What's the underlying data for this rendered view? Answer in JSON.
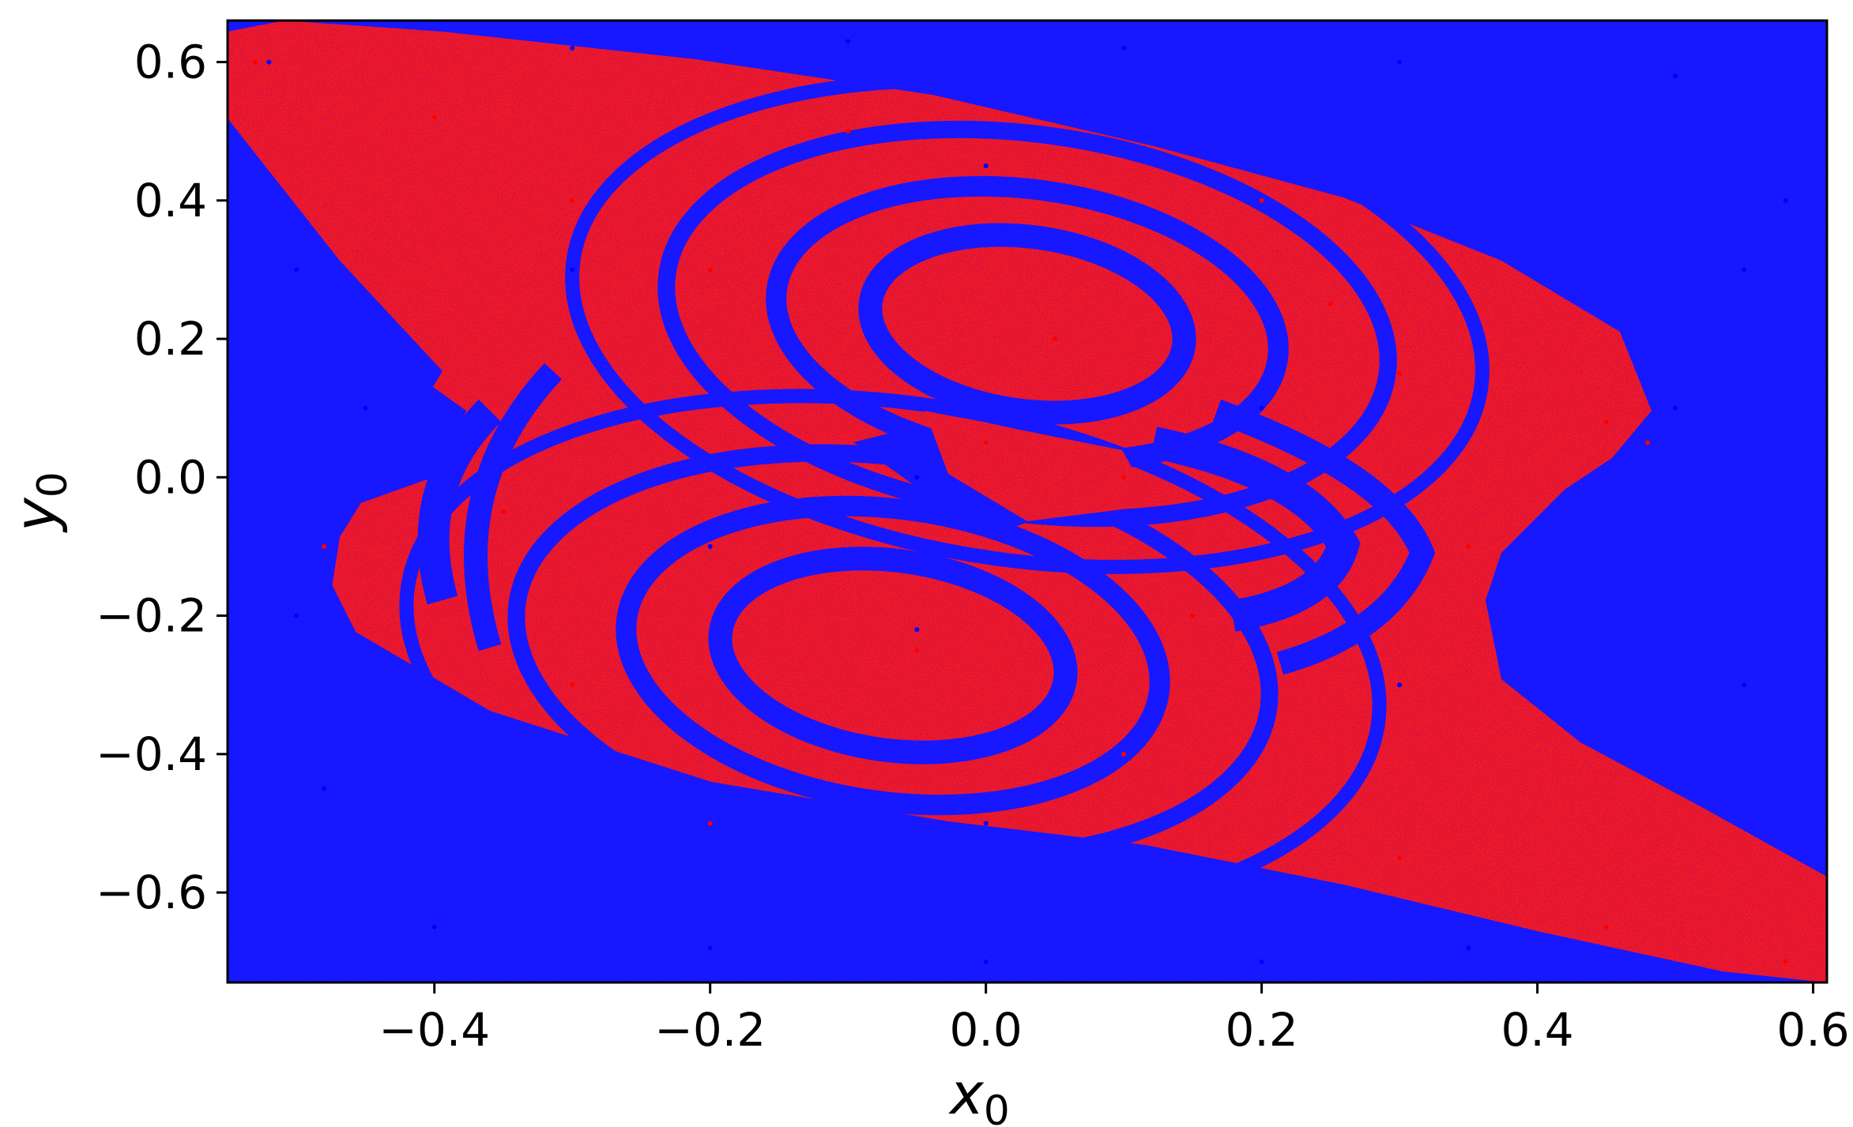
{
  "chart_data": {
    "type": "scatter",
    "title": "",
    "xlabel": "x",
    "xlabel_sub": "0",
    "ylabel": "y",
    "ylabel_sub": "0",
    "xlim": [
      -0.55,
      0.61
    ],
    "ylim": [
      -0.73,
      0.66
    ],
    "xticks": [
      -0.4,
      -0.2,
      0.0,
      0.2,
      0.4,
      0.6
    ],
    "xtick_labels": [
      "−0.4",
      "−0.2",
      "0.0",
      "0.2",
      "0.4",
      "0.6"
    ],
    "yticks": [
      -0.6,
      -0.4,
      -0.2,
      0.0,
      0.2,
      0.4,
      0.6
    ],
    "ytick_labels": [
      "−0.6",
      "−0.4",
      "−0.2",
      "0.0",
      "0.2",
      "0.4",
      "0.6"
    ],
    "grid": false,
    "legend": "none",
    "series": [
      {
        "color": "#0000ff",
        "values": [
          [
            -0.52,
            0.6
          ],
          [
            -0.3,
            0.62
          ],
          [
            -0.1,
            0.63
          ],
          [
            0.1,
            0.62
          ],
          [
            0.3,
            0.6
          ],
          [
            0.5,
            0.58
          ],
          [
            0.58,
            0.4
          ],
          [
            -0.5,
            0.3
          ],
          [
            -0.45,
            0.1
          ],
          [
            -0.5,
            -0.2
          ],
          [
            -0.48,
            -0.45
          ],
          [
            -0.4,
            -0.65
          ],
          [
            -0.2,
            -0.68
          ],
          [
            0.0,
            -0.7
          ],
          [
            0.2,
            -0.7
          ],
          [
            0.35,
            -0.68
          ],
          [
            0.55,
            -0.3
          ],
          [
            0.5,
            0.1
          ],
          [
            0.55,
            0.3
          ],
          [
            -0.05,
            0.0
          ],
          [
            0.05,
            0.2
          ],
          [
            -0.05,
            -0.22
          ],
          [
            0.2,
            0.1
          ],
          [
            -0.2,
            -0.1
          ],
          [
            0.0,
            0.45
          ],
          [
            0.0,
            -0.5
          ],
          [
            -0.3,
            0.3
          ],
          [
            0.3,
            -0.3
          ]
        ]
      },
      {
        "color": "#ff0000",
        "values": [
          [
            -0.53,
            0.6
          ],
          [
            -0.4,
            0.52
          ],
          [
            -0.3,
            0.4
          ],
          [
            -0.2,
            0.3
          ],
          [
            0.05,
            0.2
          ],
          [
            0.3,
            0.15
          ],
          [
            0.45,
            0.08
          ],
          [
            0.48,
            0.05
          ],
          [
            0.1,
            0.0
          ],
          [
            0.0,
            0.05
          ],
          [
            -0.35,
            -0.05
          ],
          [
            -0.48,
            -0.1
          ],
          [
            -0.3,
            -0.3
          ],
          [
            -0.05,
            -0.25
          ],
          [
            0.1,
            -0.4
          ],
          [
            0.3,
            -0.55
          ],
          [
            0.45,
            -0.65
          ],
          [
            0.58,
            -0.7
          ],
          [
            0.2,
            0.4
          ],
          [
            -0.1,
            0.5
          ],
          [
            -0.2,
            -0.5
          ],
          [
            0.15,
            -0.2
          ],
          [
            0.35,
            -0.1
          ],
          [
            0.25,
            0.25
          ]
        ]
      }
    ]
  }
}
